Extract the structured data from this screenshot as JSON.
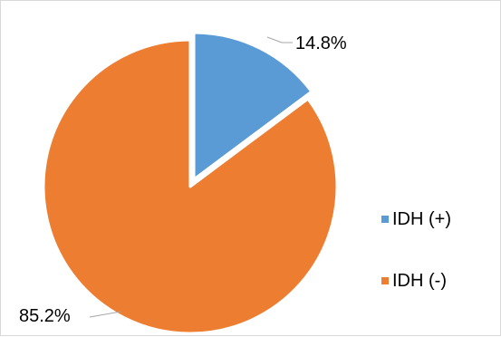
{
  "chart_data": {
    "type": "pie",
    "slices": [
      {
        "name": "IDH (+)",
        "value": 14.8,
        "label": "14.8%",
        "color": "#5b9bd5",
        "exploded": true
      },
      {
        "name": "IDH (-)",
        "value": 85.2,
        "label": "85.2%",
        "color": "#ed7d31",
        "exploded": false
      }
    ],
    "legend_position": "right",
    "start_angle": "12 o'clock, clockwise"
  }
}
